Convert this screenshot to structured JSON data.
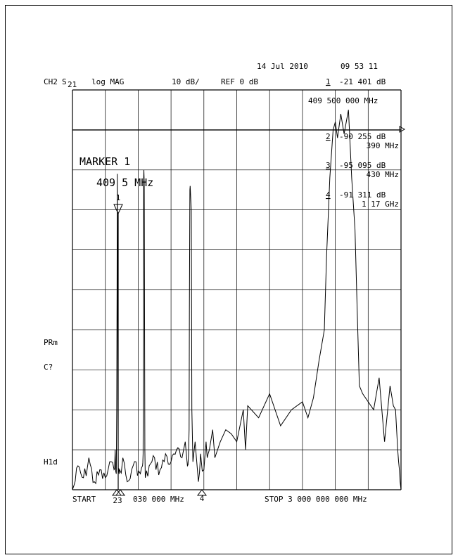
{
  "header": {
    "date": "14 Jul 2010",
    "time": "09 53 11",
    "channel": "CH2",
    "param": "S",
    "param_sub": "21",
    "format": "log MAG",
    "scale": "10 dB/",
    "ref": "REF 0 dB",
    "marker_num": "1",
    "marker_val": "-21 401 dB",
    "marker_freq": "409 500 000 MHz"
  },
  "marker_list": [
    {
      "num": "2",
      "val": "-90 255 dB",
      "freq": "390 MHz"
    },
    {
      "num": "3",
      "val": "-95 095 dB",
      "freq": "430 MHz"
    },
    {
      "num": "4",
      "val": "-91 311 dB",
      "freq": "1 17 GHz"
    }
  ],
  "marker_box": {
    "title": "MARKER 1",
    "freq": "409 5 MHz"
  },
  "side_labels": {
    "prm": "PRm",
    "cal": "C?",
    "hold": "H1d"
  },
  "footer": {
    "start": "START",
    "start_val": "030 000 MHz",
    "stop": "STOP 3 000 000 000 MHz"
  },
  "marker_flags": {
    "m1": "1",
    "m23": "23",
    "m4": "4"
  },
  "chart_data": {
    "type": "line",
    "title": "",
    "xlabel": "",
    "ylabel": "",
    "xlim_mhz": [
      0.03,
      3000
    ],
    "ylim_db": [
      -100,
      0
    ],
    "y_per_div_db": 10,
    "grid": true,
    "series": [
      {
        "x_mhz": [
          0.03,
          50,
          100,
          150,
          200,
          250,
          300,
          340,
          380,
          390,
          400,
          404,
          407,
          409.5,
          412,
          415,
          419,
          425,
          430,
          460,
          500,
          540,
          580,
          620,
          640,
          645,
          648,
          650,
          652,
          655,
          658,
          661,
          665,
          700,
          750,
          800,
          850,
          900,
          950,
          1000,
          1030,
          1050,
          1060,
          1065,
          1068,
          1072,
          1075,
          1085,
          1090,
          1100,
          1120,
          1150,
          1170,
          1200,
          1220,
          1230,
          1250,
          1280,
          1300,
          1350,
          1400,
          1450,
          1500,
          1560,
          1580,
          1600,
          1700,
          1800,
          1900,
          2000,
          2100,
          2150,
          2200,
          2250,
          2300,
          2320,
          2350,
          2380,
          2400,
          2420,
          2450,
          2480,
          2520,
          2550,
          2580,
          2600,
          2620,
          2650,
          2700,
          2750,
          2800,
          2850,
          2900,
          2930,
          2950,
          2970,
          2985,
          3000
        ],
        "y_db": [
          -100,
          -94,
          -97,
          -92,
          -98,
          -95,
          -97,
          -93,
          -95,
          -90,
          -96,
          -80,
          -50,
          -21,
          -45,
          -78,
          -95,
          -96,
          -95,
          -92,
          -98,
          -95,
          -93,
          -96,
          -94,
          -91,
          -60,
          -22,
          -20,
          -23,
          -50,
          -90,
          -97,
          -94,
          -92,
          -95,
          -91,
          -93,
          -90,
          -92,
          -88,
          -94,
          -91,
          -85,
          -55,
          -25,
          -24,
          -30,
          -80,
          -93,
          -88,
          -98,
          -91,
          -95,
          -88,
          -92,
          -90,
          -85,
          -92,
          -88,
          -85,
          -86,
          -88,
          -80,
          -90,
          -79,
          -82,
          -76,
          -84,
          -80,
          -78,
          -82,
          -77,
          -68,
          -60,
          -42,
          -22,
          -10,
          -8,
          -12,
          -6,
          -11,
          -5,
          -22,
          -35,
          -55,
          -74,
          -76,
          -78,
          -80,
          -72,
          -88,
          -74,
          -79,
          -80,
          -90,
          -95,
          -100
        ]
      }
    ]
  }
}
